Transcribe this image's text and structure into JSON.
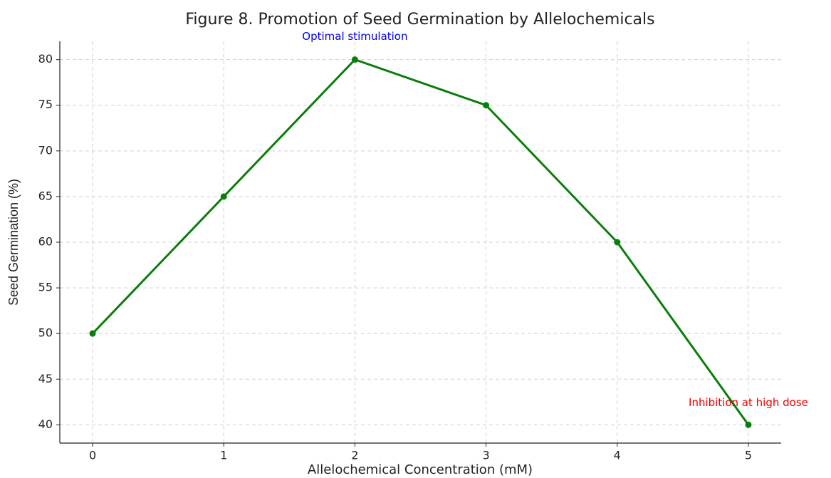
{
  "chart_data": {
    "type": "line",
    "title": "Figure 8. Promotion of Seed Germination by Allelochemicals",
    "xlabel": "Allelochemical Concentration (mM)",
    "ylabel": "Seed Germination (%)",
    "x": [
      0,
      1,
      2,
      3,
      4,
      5
    ],
    "series": [
      {
        "name": "Seed Germination",
        "color": "#0a7d0a",
        "values": [
          50,
          65,
          80,
          75,
          60,
          40
        ]
      }
    ],
    "xlim": [
      -0.25,
      5.25
    ],
    "xticks": [
      0,
      1,
      2,
      3,
      4,
      5
    ],
    "ylim": [
      38,
      82
    ],
    "yticks": [
      40,
      45,
      50,
      55,
      60,
      65,
      70,
      75,
      80
    ],
    "grid": true,
    "annotations": [
      {
        "text": "Optimal stimulation",
        "x": 2,
        "y": 82.5,
        "color": "#0000ee"
      },
      {
        "text": "Inhibition at high dose",
        "x": 5,
        "y": 42.4,
        "color": "#ee0000"
      }
    ]
  }
}
